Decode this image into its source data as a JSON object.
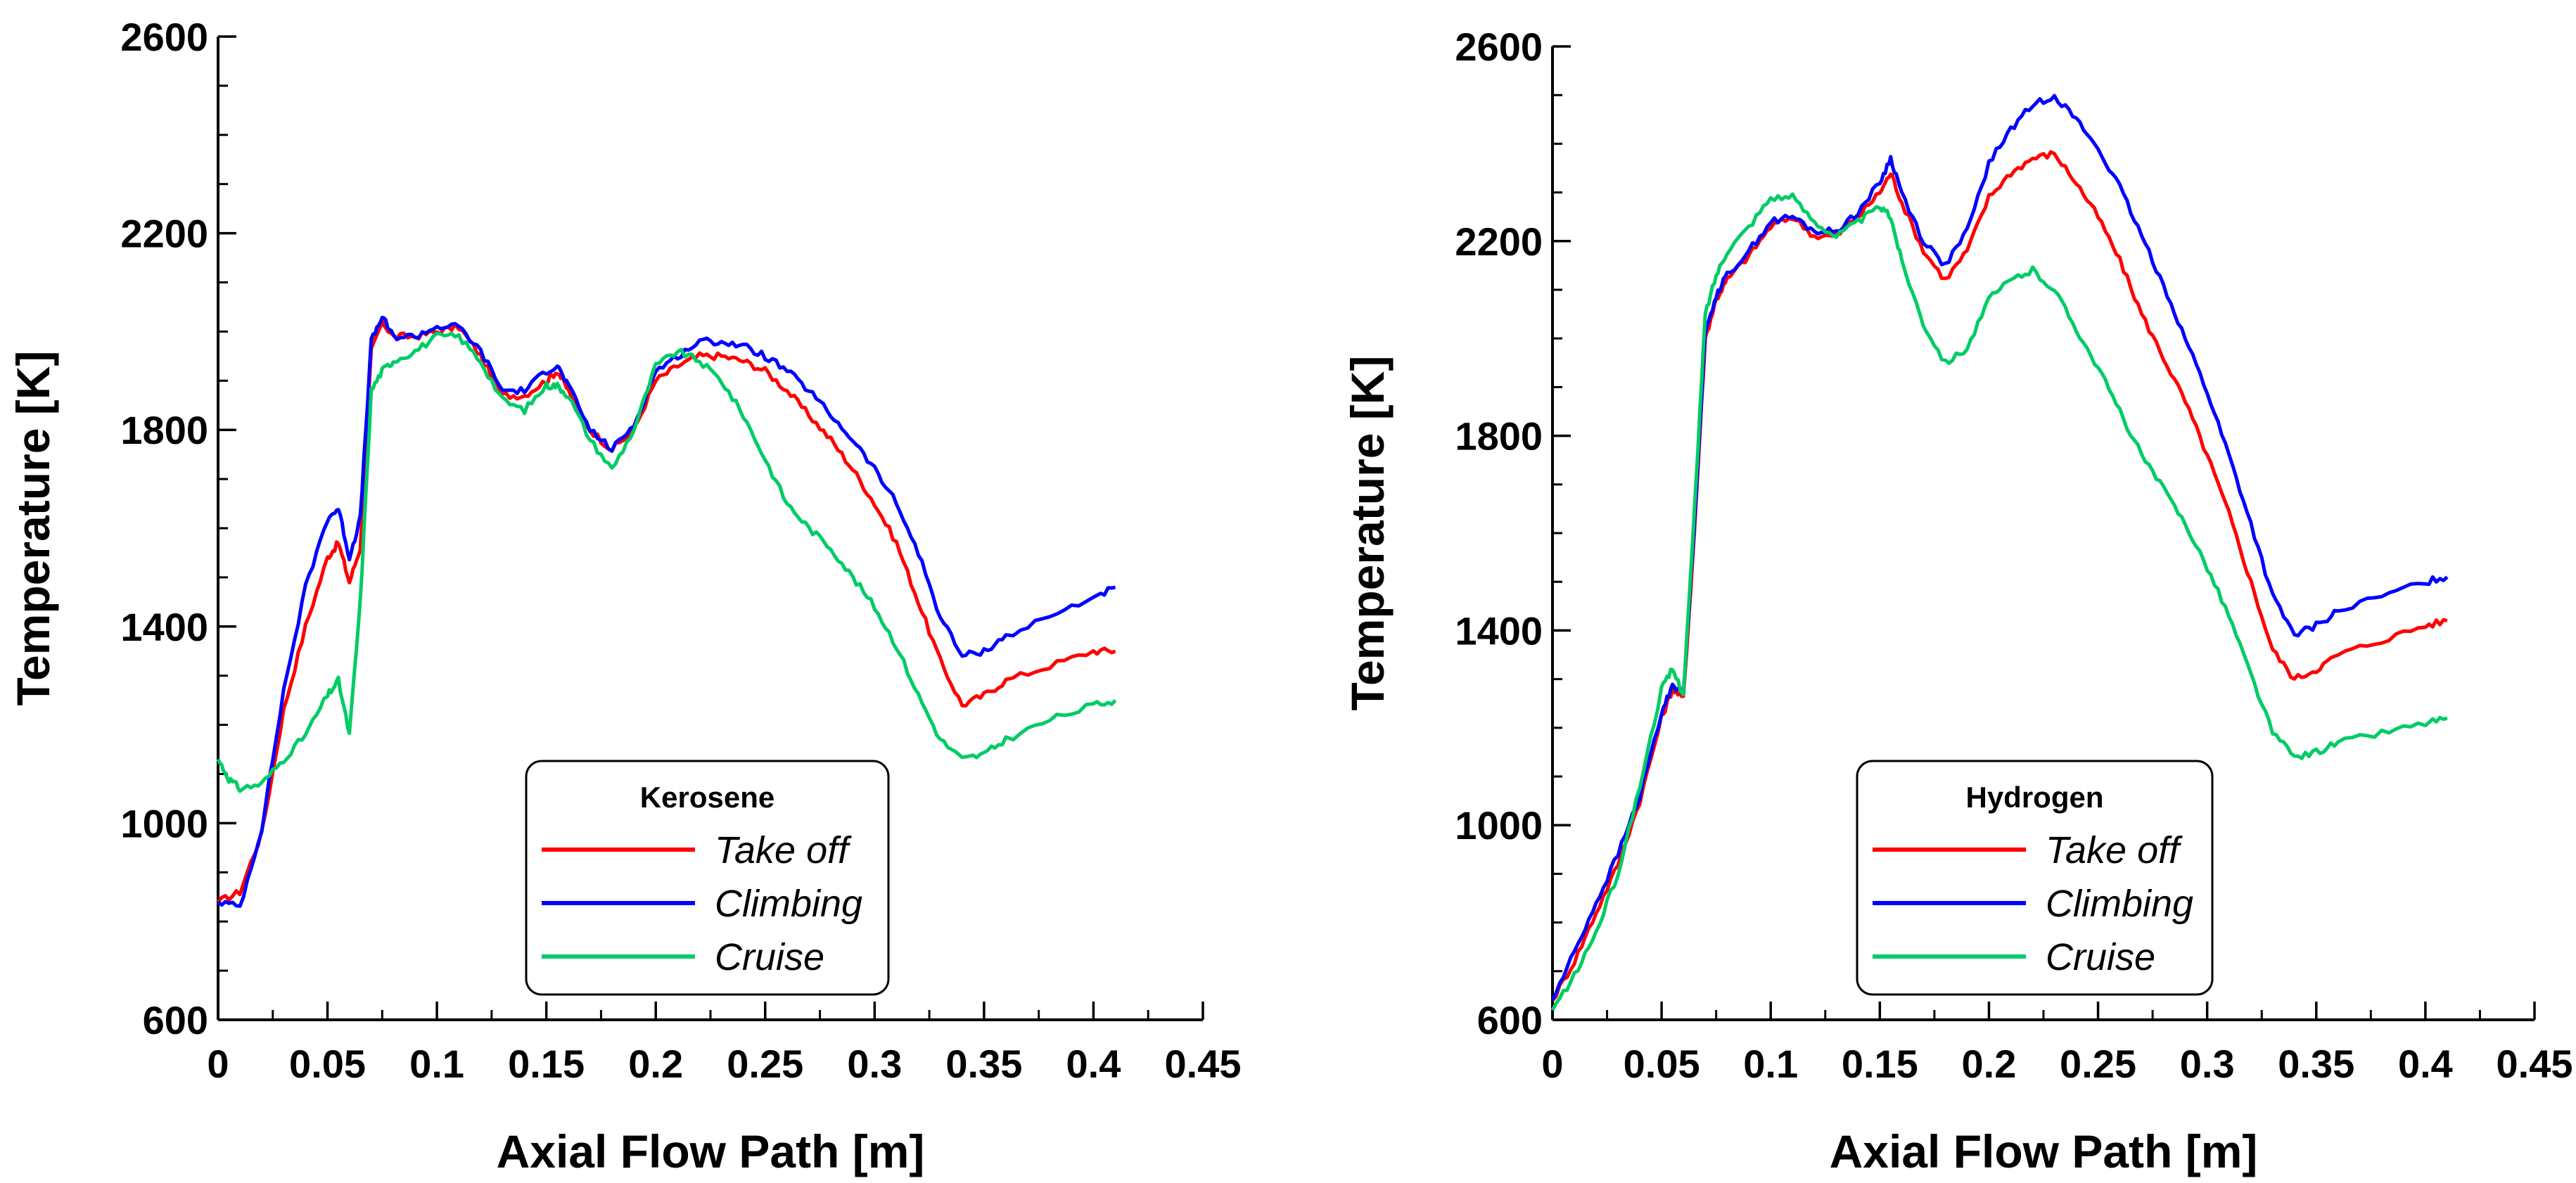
{
  "chart_data": [
    {
      "type": "line",
      "title": "",
      "xlabel": "Axial Flow Path [m]",
      "ylabel": "Temperature [K]",
      "xlim": [
        0,
        0.45
      ],
      "ylim": [
        600,
        2600
      ],
      "xticks": [
        "0",
        "0.05",
        "0.1",
        "0.15",
        "0.2",
        "0.25",
        "0.3",
        "0.35",
        "0.4",
        "0.45"
      ],
      "yticks": [
        "600",
        "1000",
        "1400",
        "1800",
        "2200",
        "2600"
      ],
      "grid": false,
      "legend": {
        "title": "Kerosene",
        "placement": "bottom-right"
      },
      "series": [
        {
          "name": "Take off",
          "color": "#ff0000",
          "x": [
            0,
            0.01,
            0.02,
            0.03,
            0.04,
            0.05,
            0.055,
            0.06,
            0.065,
            0.07,
            0.075,
            0.08,
            0.09,
            0.1,
            0.11,
            0.12,
            0.13,
            0.14,
            0.15,
            0.155,
            0.16,
            0.17,
            0.18,
            0.19,
            0.2,
            0.21,
            0.22,
            0.23,
            0.24,
            0.25,
            0.26,
            0.27,
            0.28,
            0.29,
            0.3,
            0.31,
            0.32,
            0.33,
            0.34,
            0.35,
            0.36,
            0.38,
            0.4,
            0.41
          ],
          "y": [
            840,
            860,
            980,
            1230,
            1400,
            1540,
            1570,
            1490,
            1560,
            1960,
            2020,
            1990,
            1990,
            2000,
            2010,
            1950,
            1870,
            1870,
            1900,
            1920,
            1880,
            1800,
            1760,
            1800,
            1900,
            1930,
            1950,
            1950,
            1940,
            1920,
            1880,
            1830,
            1780,
            1720,
            1650,
            1570,
            1450,
            1330,
            1240,
            1260,
            1290,
            1320,
            1350,
            1350
          ]
        },
        {
          "name": "Climbing",
          "color": "#0000ff",
          "x": [
            0,
            0.01,
            0.02,
            0.03,
            0.04,
            0.05,
            0.055,
            0.06,
            0.065,
            0.07,
            0.075,
            0.08,
            0.09,
            0.1,
            0.11,
            0.12,
            0.13,
            0.14,
            0.15,
            0.155,
            0.16,
            0.17,
            0.18,
            0.19,
            0.2,
            0.21,
            0.22,
            0.23,
            0.24,
            0.25,
            0.26,
            0.27,
            0.28,
            0.29,
            0.3,
            0.31,
            0.32,
            0.33,
            0.34,
            0.35,
            0.36,
            0.38,
            0.4,
            0.41
          ],
          "y": [
            840,
            830,
            990,
            1270,
            1480,
            1620,
            1640,
            1540,
            1620,
            1980,
            2030,
            1990,
            1990,
            2010,
            2010,
            1960,
            1880,
            1880,
            1920,
            1930,
            1890,
            1800,
            1760,
            1810,
            1920,
            1950,
            1980,
            1980,
            1970,
            1950,
            1920,
            1880,
            1830,
            1780,
            1720,
            1650,
            1550,
            1420,
            1340,
            1350,
            1380,
            1420,
            1460,
            1480
          ]
        },
        {
          "name": "Cruise",
          "color": "#00cc66",
          "x": [
            0,
            0.005,
            0.01,
            0.02,
            0.03,
            0.04,
            0.05,
            0.055,
            0.06,
            0.065,
            0.07,
            0.075,
            0.08,
            0.09,
            0.1,
            0.11,
            0.12,
            0.13,
            0.14,
            0.15,
            0.155,
            0.16,
            0.17,
            0.18,
            0.19,
            0.2,
            0.21,
            0.22,
            0.23,
            0.24,
            0.25,
            0.26,
            0.27,
            0.28,
            0.29,
            0.3,
            0.31,
            0.32,
            0.33,
            0.34,
            0.35,
            0.36,
            0.38,
            0.4,
            0.41
          ],
          "y": [
            1130,
            1090,
            1070,
            1080,
            1130,
            1180,
            1260,
            1290,
            1180,
            1450,
            1880,
            1920,
            1940,
            1960,
            1990,
            1990,
            1940,
            1860,
            1840,
            1890,
            1890,
            1870,
            1780,
            1720,
            1800,
            1930,
            1960,
            1940,
            1900,
            1830,
            1740,
            1650,
            1600,
            1560,
            1500,
            1440,
            1360,
            1260,
            1170,
            1130,
            1140,
            1170,
            1210,
            1240,
            1250
          ]
        }
      ]
    },
    {
      "type": "line",
      "title": "",
      "xlabel": "Axial Flow Path [m]",
      "ylabel": "Temperature [K]",
      "xlim": [
        0,
        0.45
      ],
      "ylim": [
        600,
        2600
      ],
      "xticks": [
        "0",
        "0.05",
        "0.1",
        "0.15",
        "0.2",
        "0.25",
        "0.3",
        "0.35",
        "0.4",
        "0.45"
      ],
      "yticks": [
        "600",
        "1000",
        "1400",
        "1800",
        "2200",
        "2600"
      ],
      "grid": false,
      "legend": {
        "title": "Hydrogen",
        "placement": "bottom-right"
      },
      "series": [
        {
          "name": "Take off",
          "color": "#ff0000",
          "x": [
            0,
            0.01,
            0.02,
            0.03,
            0.04,
            0.05,
            0.055,
            0.06,
            0.065,
            0.07,
            0.075,
            0.08,
            0.09,
            0.1,
            0.11,
            0.12,
            0.13,
            0.14,
            0.15,
            0.155,
            0.16,
            0.17,
            0.18,
            0.19,
            0.2,
            0.21,
            0.22,
            0.23,
            0.24,
            0.25,
            0.26,
            0.27,
            0.28,
            0.29,
            0.3,
            0.31,
            0.32,
            0.33,
            0.34,
            0.35,
            0.36,
            0.38,
            0.4,
            0.41
          ],
          "y": [
            640,
            720,
            820,
            920,
            1050,
            1220,
            1280,
            1260,
            1600,
            2000,
            2080,
            2120,
            2170,
            2230,
            2250,
            2210,
            2210,
            2250,
            2300,
            2340,
            2280,
            2180,
            2120,
            2180,
            2290,
            2340,
            2370,
            2380,
            2320,
            2250,
            2160,
            2050,
            1960,
            1870,
            1760,
            1640,
            1500,
            1360,
            1300,
            1320,
            1350,
            1380,
            1410,
            1420
          ]
        },
        {
          "name": "Climbing",
          "color": "#0000ff",
          "x": [
            0,
            0.01,
            0.02,
            0.03,
            0.04,
            0.05,
            0.055,
            0.06,
            0.065,
            0.07,
            0.075,
            0.08,
            0.09,
            0.1,
            0.11,
            0.12,
            0.13,
            0.14,
            0.15,
            0.155,
            0.16,
            0.17,
            0.18,
            0.19,
            0.2,
            0.21,
            0.22,
            0.23,
            0.24,
            0.25,
            0.26,
            0.27,
            0.28,
            0.29,
            0.3,
            0.31,
            0.32,
            0.33,
            0.34,
            0.35,
            0.36,
            0.38,
            0.4,
            0.41
          ],
          "y": [
            640,
            740,
            840,
            940,
            1060,
            1230,
            1290,
            1270,
            1620,
            2010,
            2090,
            2130,
            2180,
            2240,
            2250,
            2220,
            2220,
            2260,
            2320,
            2370,
            2300,
            2200,
            2150,
            2220,
            2360,
            2430,
            2480,
            2500,
            2450,
            2390,
            2310,
            2210,
            2110,
            2000,
            1890,
            1760,
            1620,
            1470,
            1390,
            1410,
            1440,
            1470,
            1500,
            1510
          ]
        },
        {
          "name": "Cruise",
          "color": "#00cc66",
          "x": [
            0,
            0.01,
            0.02,
            0.03,
            0.04,
            0.05,
            0.055,
            0.06,
            0.065,
            0.07,
            0.075,
            0.08,
            0.09,
            0.1,
            0.11,
            0.12,
            0.13,
            0.14,
            0.15,
            0.155,
            0.16,
            0.17,
            0.18,
            0.19,
            0.2,
            0.21,
            0.22,
            0.23,
            0.24,
            0.25,
            0.26,
            0.27,
            0.28,
            0.29,
            0.3,
            0.31,
            0.32,
            0.33,
            0.34,
            0.35,
            0.36,
            0.38,
            0.4,
            0.41
          ],
          "y": [
            620,
            690,
            780,
            900,
            1080,
            1280,
            1320,
            1270,
            1640,
            2050,
            2130,
            2180,
            2230,
            2290,
            2290,
            2240,
            2210,
            2240,
            2270,
            2250,
            2160,
            2030,
            1950,
            1980,
            2080,
            2120,
            2140,
            2100,
            2020,
            1940,
            1850,
            1760,
            1690,
            1620,
            1530,
            1430,
            1310,
            1190,
            1140,
            1150,
            1170,
            1190,
            1210,
            1220
          ]
        }
      ]
    }
  ]
}
